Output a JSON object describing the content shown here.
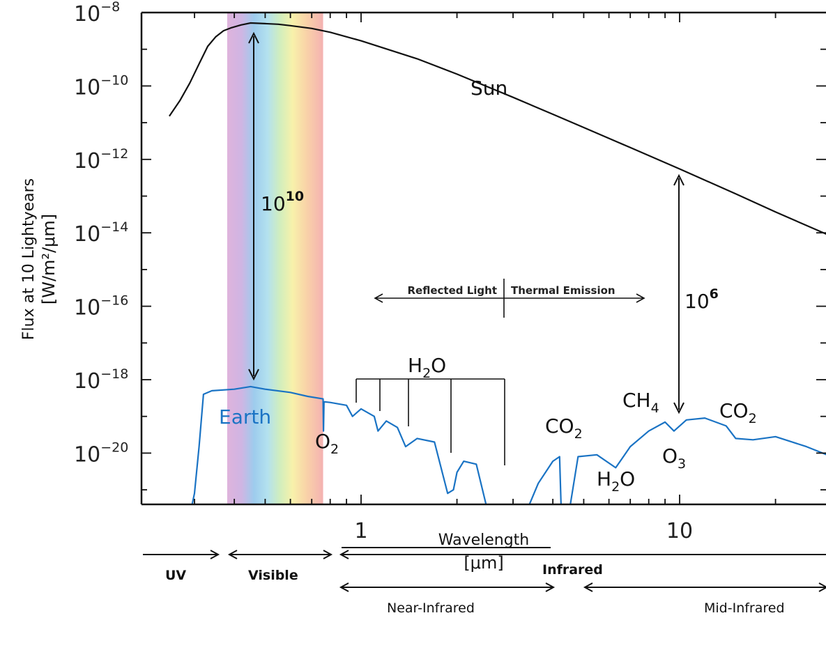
{
  "chart_data": {
    "type": "line",
    "xlabel": "Wavelength",
    "xunit": "[μm]",
    "ylabel": "Flux at 10 Lightyears",
    "yunit": "[W/m²/μm]",
    "xscale": "log",
    "yscale": "log",
    "xlim": [
      0.25,
      30
    ],
    "ylim": [
      3e-22,
      1.2e-08
    ],
    "x_ticks": [
      {
        "value": 1,
        "label": "1"
      },
      {
        "value": 10,
        "label": "10"
      }
    ],
    "y_ticks": [
      {
        "value": 1e-08,
        "base": "10",
        "exp": "−8"
      },
      {
        "value": 1e-10,
        "base": "10",
        "exp": "−10"
      },
      {
        "value": 1e-12,
        "base": "10",
        "exp": "−12"
      },
      {
        "value": 1e-14,
        "base": "10",
        "exp": "−14"
      },
      {
        "value": 1e-16,
        "base": "10",
        "exp": "−16"
      },
      {
        "value": 1e-18,
        "base": "10",
        "exp": "−18"
      },
      {
        "value": 1e-20,
        "base": "10",
        "exp": "−20"
      }
    ],
    "visible_band": [
      0.38,
      0.76
    ],
    "series": [
      {
        "name": "Sun",
        "color": "#111111",
        "points": [
          [
            0.25,
            1.5e-11
          ],
          [
            0.27,
            4e-11
          ],
          [
            0.29,
            1.2e-10
          ],
          [
            0.31,
            4e-10
          ],
          [
            0.33,
            1.2e-09
          ],
          [
            0.35,
            2.2e-09
          ],
          [
            0.37,
            3.2e-09
          ],
          [
            0.39,
            3.8e-09
          ],
          [
            0.42,
            4.6e-09
          ],
          [
            0.45,
            5.2e-09
          ],
          [
            0.5,
            5e-09
          ],
          [
            0.55,
            4.8e-09
          ],
          [
            0.6,
            4.4e-09
          ],
          [
            0.7,
            3.7e-09
          ],
          [
            0.8,
            2.9e-09
          ],
          [
            1.0,
            1.7e-09
          ],
          [
            1.5,
            5.5e-10
          ],
          [
            2.0,
            2.1e-10
          ],
          [
            3.0,
            4.9e-11
          ],
          [
            4.0,
            1.7e-11
          ],
          [
            5.0,
            7.4e-12
          ],
          [
            7.0,
            2.1e-12
          ],
          [
            10.0,
            5.5e-13
          ],
          [
            15.0,
            1.15e-13
          ],
          [
            20.0,
            3.7e-14
          ],
          [
            30.0,
            8e-15
          ]
        ]
      },
      {
        "name": "Earth",
        "color": "#1a73c4",
        "points": [
          [
            0.29,
            2e-22
          ],
          [
            0.3,
            8e-22
          ],
          [
            0.31,
            1.5e-20
          ],
          [
            0.32,
            4e-19
          ],
          [
            0.34,
            5e-19
          ],
          [
            0.4,
            5.5e-19
          ],
          [
            0.45,
            6.5e-19
          ],
          [
            0.5,
            5.5e-19
          ],
          [
            0.6,
            4.5e-19
          ],
          [
            0.68,
            3.5e-19
          ],
          [
            0.76,
            3e-19
          ],
          [
            0.762,
            4e-20
          ],
          [
            0.765,
            2.5e-19
          ],
          [
            0.8,
            2.4e-19
          ],
          [
            0.9,
            2e-19
          ],
          [
            0.94,
            1e-19
          ],
          [
            1.0,
            1.6e-19
          ],
          [
            1.1,
            1e-19
          ],
          [
            1.13,
            4e-20
          ],
          [
            1.2,
            7.5e-20
          ],
          [
            1.3,
            5e-20
          ],
          [
            1.38,
            1.5e-20
          ],
          [
            1.5,
            2.5e-20
          ],
          [
            1.7,
            2e-20
          ],
          [
            1.87,
            8e-22
          ],
          [
            1.95,
            1e-21
          ],
          [
            2.0,
            3e-21
          ],
          [
            2.1,
            6e-21
          ],
          [
            2.3,
            5e-21
          ],
          [
            2.5,
            2.5e-22
          ],
          [
            3.3,
            2.5e-22
          ],
          [
            3.6,
            1.5e-21
          ],
          [
            4.0,
            6e-21
          ],
          [
            4.2,
            8e-21
          ],
          [
            4.25,
            2.5e-22
          ],
          [
            4.5,
            2.5e-22
          ],
          [
            4.8,
            8e-21
          ],
          [
            5.5,
            9e-21
          ],
          [
            6.3,
            4e-21
          ],
          [
            7.0,
            1.5e-20
          ],
          [
            8.0,
            4e-20
          ],
          [
            9.0,
            7e-20
          ],
          [
            9.6,
            4e-20
          ],
          [
            10.5,
            8e-20
          ],
          [
            12.0,
            9e-20
          ],
          [
            14.0,
            5.5e-20
          ],
          [
            15.0,
            2.5e-20
          ],
          [
            17.0,
            2.3e-20
          ],
          [
            20.0,
            2.8e-20
          ],
          [
            25.0,
            1.5e-20
          ],
          [
            30.0,
            8e-21
          ]
        ]
      }
    ]
  },
  "labels": {
    "sun": "Sun",
    "earth": "Earth",
    "ratio_visible": {
      "base": "10",
      "exp": "10"
    },
    "ratio_ir": {
      "base": "10",
      "exp": "6"
    },
    "reflected": "Reflected Light",
    "thermal": "Thermal Emission",
    "h2o_top": {
      "a": "H",
      "sub": "2",
      "b": "O"
    },
    "o2": {
      "a": "O",
      "sub": "2"
    },
    "co2_left": {
      "a": "CO",
      "sub": "2"
    },
    "co2_right": {
      "a": "CO",
      "sub": "2"
    },
    "ch4": {
      "a": "CH",
      "sub": "4"
    },
    "o3": {
      "a": "O",
      "sub": "3"
    },
    "h2o_bottom": {
      "a": "H",
      "sub": "2",
      "b": "O"
    }
  },
  "bands": {
    "uv": "UV",
    "visible": "Visible",
    "infrared": "Infrared",
    "near_infrared": "Near-Infrared",
    "mid_infrared": "Mid-Infrared"
  },
  "colors": {
    "sun": "#111111",
    "earth": "#1a73c4",
    "axis": "#111111",
    "spectrum": [
      "#c47ec2",
      "#6fb0e0",
      "#88d6e8",
      "#bde8a6",
      "#f6ee8e",
      "#f8c98a",
      "#f09a9a"
    ]
  }
}
